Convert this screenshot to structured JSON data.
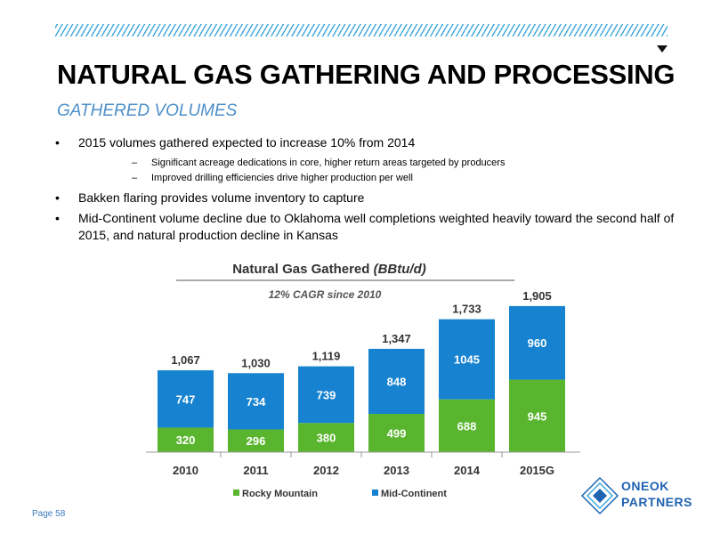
{
  "slide": {
    "title": "NATURAL GAS GATHERING AND PROCESSING",
    "subtitle": "GATHERED VOLUMES",
    "bullets": [
      {
        "marker": "•",
        "text": "2015 volumes gathered expected to increase 10% from 2014"
      },
      {
        "marker": "–",
        "text": "Significant acreage dedications in core, higher return areas targeted by producers"
      },
      {
        "marker": "–",
        "text": "Improved drilling efficiencies drive higher production per well"
      },
      {
        "marker": "•",
        "text": "Bakken flaring provides volume inventory to capture"
      },
      {
        "marker": "•",
        "text": "Mid-Continent volume decline due to Oklahoma well completions weighted heavily toward the second half of",
        "text2": "2015, and natural production decline in Kansas"
      }
    ],
    "page_label": "Page 58"
  },
  "logo": {
    "line1": "ONEOK",
    "line2": "PARTNERS"
  },
  "colors": {
    "accent_blue": "#1682d0",
    "green": "#58b52d",
    "title_blue": "#4d8fc9",
    "hatch": "#3fa7dc"
  },
  "chart_data": {
    "type": "bar",
    "stacked": true,
    "title": "Natural Gas Gathered",
    "title_unit": "(BBtu/d)",
    "annotation": "12% CAGR since 2010",
    "categories": [
      "2010",
      "2011",
      "2012",
      "2013",
      "2014",
      "2015G"
    ],
    "series": [
      {
        "name": "Rocky Mountain",
        "color": "#58b52d",
        "values": [
          320,
          296,
          380,
          499,
          688,
          945
        ]
      },
      {
        "name": "Mid-Continent",
        "color": "#1682d0",
        "values": [
          747,
          734,
          739,
          848,
          1045,
          960
        ]
      }
    ],
    "totals": [
      "1,067",
      "1,030",
      "1,119",
      "1,347",
      "1,733",
      "1,905"
    ],
    "ylim": [
      0,
      1950
    ],
    "legend_position": "bottom",
    "grid": false
  }
}
